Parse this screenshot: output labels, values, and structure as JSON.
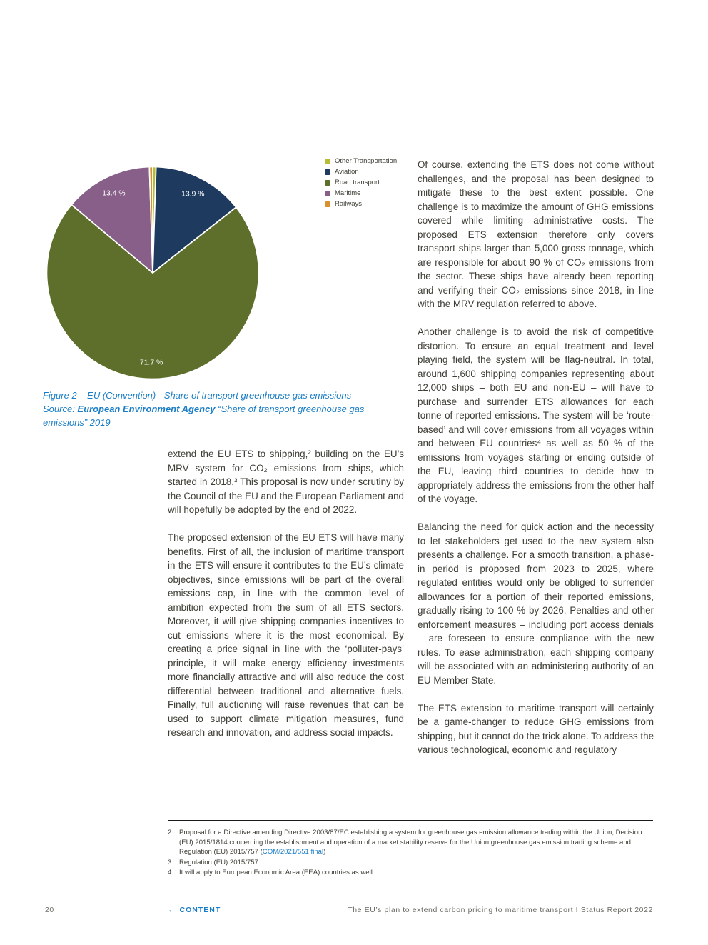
{
  "chart_data": {
    "type": "pie",
    "title": "EU (Convention) - Share of transport greenhouse gas emissions",
    "labels": [
      "Other Transportation",
      "Aviation",
      "Road transport",
      "Maritime",
      "Railways"
    ],
    "values": [
      0.5,
      13.9,
      71.7,
      13.4,
      0.5
    ],
    "colors": [
      "#b7bc35",
      "#1e3a5f",
      "#5e6f2c",
      "#875f88",
      "#d9912f"
    ],
    "slice_labels": [
      "",
      "13.9 %",
      "71.7 %",
      "13.4 %",
      ""
    ],
    "legend_position": "right",
    "label_color": "#ffffff"
  },
  "figure": {
    "caption": "Figure 2 – EU (Convention) - Share of transport greenhouse gas emissions",
    "source_prefix": "Source: ",
    "source_bold": "European Environment Agency",
    "source_suffix": " “Share of transport greenhouse gas emissions” 2019"
  },
  "left_column": {
    "para1": "extend the EU ETS to shipping,² building on the EU’s MRV system for CO₂ emissions from ships, which started in 2018.³ This proposal is now under scrutiny by the Council of the EU and the European Parliament and will hopefully be adopted by the end of 2022.",
    "para2": "The proposed extension of the EU ETS will have many benefits. First of all, the inclusion of maritime transport in the ETS will ensure it contributes to the EU’s climate objectives, since emissions will be part of the overall emissions cap, in line with the common level of ambition expected from the sum of all ETS sectors. Moreover, it will give shipping companies incentives to cut emissions where it is the most economical. By creating a price signal in line with the ‘polluter-pays’ principle, it will make energy efficiency investments more financially attractive and will also reduce the cost differential between traditional and alternative fuels. Finally, full auctioning will raise revenues that can be used to support climate mitigation measures, fund research and innovation, and address social impacts."
  },
  "right_column": {
    "para1": "Of course, extending the ETS does not come without challenges, and the proposal has been designed to mitigate these to the best extent possible. One challenge is to maximize the amount of GHG emissions covered while limiting administrative costs. The proposed ETS extension therefore only covers transport ships larger than 5,000 gross tonnage, which are responsible for about 90 % of CO₂ emissions from the sector. These ships have already been reporting and verifying their CO₂ emissions since 2018, in line with the MRV regulation referred to above.",
    "para2": "Another challenge is to avoid the risk of competitive distortion. To ensure an equal treatment and level playing field, the system will be flag-neutral. In total, around 1,600 shipping companies representing about 12,000 ships – both EU and non-EU – will have to purchase and surrender ETS allowances for each tonne of reported emissions. The system will be ‘route-based’ and will cover emissions from all voyages within and between EU countries⁴ as well as 50 % of the emissions from voyages starting or ending outside of the EU, leaving third countries to decide how to appropriately address the emissions from the other half of the voyage.",
    "para3": "Balancing the need for quick action and the necessity to let stakeholders get used to the new system also presents a challenge. For a smooth transition, a phase-in period is proposed from 2023 to 2025, where regulated entities would only be obliged to surrender allowances for a portion of their reported emissions, gradually rising to 100 % by 2026. Penalties and other enforcement measures – including port access denials – are foreseen to ensure compliance with the new rules. To ease administration, each shipping company will be associated with an administering authority of an EU Member State.",
    "para4": "The ETS extension to maritime transport will certainly be a game-changer to reduce GHG emissions from shipping, but it cannot do the trick alone. To address the various technological, economic and regulatory"
  },
  "footnotes": {
    "fn2_num": "2",
    "fn2_pre": "Proposal for a Directive amending Directive 2003/87/EC establishing a system for greenhouse gas emission allowance trading within the Union, Decision (EU) 2015/1814 concerning the establishment and operation of a market stability reserve for the Union greenhouse gas emission trading scheme and Regulation (EU) 2015/757 (",
    "fn2_link": "COM/2021/551 final",
    "fn2_post": ")",
    "fn3_num": "3",
    "fn3_text": "Regulation (EU) 2015/757",
    "fn4_num": "4",
    "fn4_text": "It will apply to European Economic Area (EEA) countries as well."
  },
  "footer": {
    "page_number": "20",
    "content_arrow": "←",
    "content_link": "CONTENT",
    "right_text": "The EU’s plan to extend carbon pricing to maritime transport  I  Status Report 2022"
  }
}
